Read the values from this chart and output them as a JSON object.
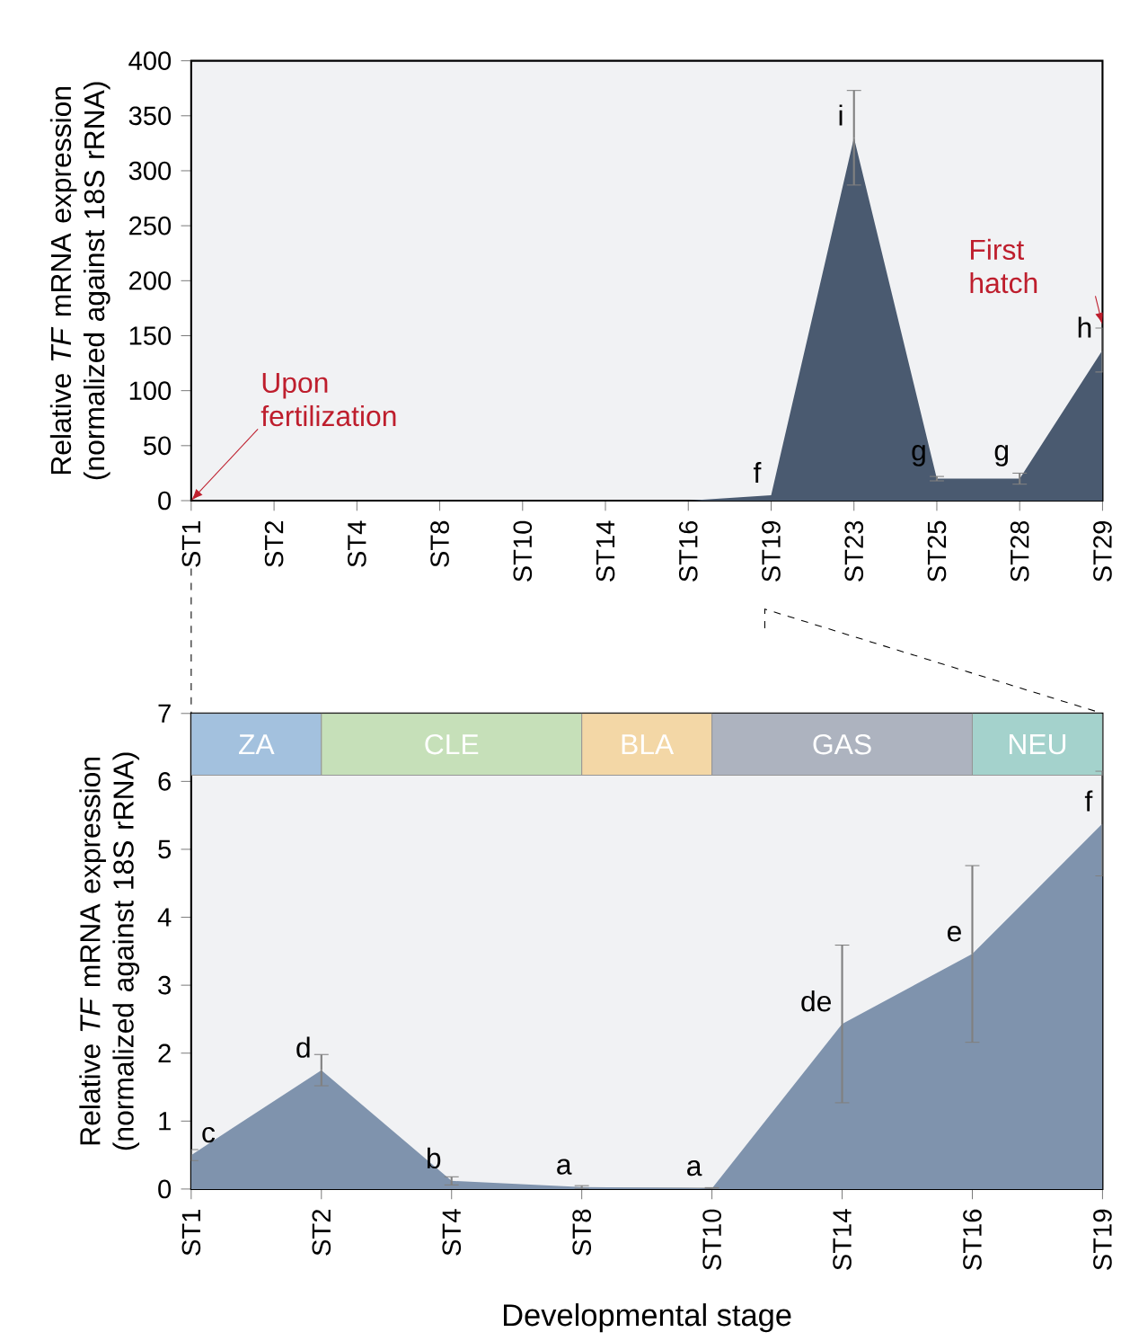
{
  "chart_data": [
    {
      "type": "area",
      "ylabel": "Relative *TF* mRNA expression (normalized against 18S rRNA)",
      "categories": [
        "ST1",
        "ST2",
        "ST4",
        "ST8",
        "ST10",
        "ST14",
        "ST16",
        "ST19",
        "ST23",
        "ST25",
        "ST28",
        "ST29"
      ],
      "series": [
        {
          "color": "#4a5a70",
          "values": [
            0,
            0,
            0,
            0,
            0,
            0,
            0,
            5,
            330,
            20,
            20,
            137
          ],
          "errors": [
            null,
            null,
            null,
            null,
            null,
            null,
            null,
            null,
            43,
            2,
            5,
            20
          ]
        }
      ],
      "ylim": [
        0,
        400
      ],
      "yticks": [
        0,
        50,
        100,
        150,
        200,
        250,
        300,
        350,
        400
      ],
      "annotations": [
        {
          "text": "f",
          "x": "ST19",
          "y": 5
        },
        {
          "text": "i",
          "x": "ST23",
          "y": 330
        },
        {
          "text": "g",
          "x": "ST25",
          "y": 20
        },
        {
          "text": "g",
          "x": "ST28",
          "y": 20
        },
        {
          "text": "h",
          "x": "ST29",
          "y": 137
        },
        {
          "text": "Upon fertilization",
          "x": "ST1",
          "y": 0
        },
        {
          "text": "First hatch",
          "x": "ST29",
          "y": 160
        }
      ]
    },
    {
      "type": "area",
      "xlabel": "Developmental stage",
      "ylabel": "Relative *TF* mRNA expression (normalized against 18S rRNA)",
      "categories": [
        "ST1",
        "ST2",
        "ST4",
        "ST8",
        "ST10",
        "ST14",
        "ST16",
        "ST19"
      ],
      "series": [
        {
          "color": "#7f93ad",
          "values": [
            0.5,
            1.75,
            0.12,
            0.03,
            0.01,
            2.43,
            3.46,
            5.38
          ],
          "errors": [
            0.08,
            0.23,
            0.06,
            0.02,
            0.01,
            1.16,
            1.3,
            0.77
          ]
        }
      ],
      "ylim": [
        0,
        7
      ],
      "yticks": [
        0,
        1,
        2,
        3,
        4,
        5,
        6,
        7
      ],
      "bands": [
        {
          "axis": "x",
          "from": "ST1",
          "to": "ST2",
          "label": "ZA",
          "color": "#a3c1de"
        },
        {
          "axis": "x",
          "from": "ST2",
          "to": "ST8",
          "label": "CLE",
          "color": "#c6e0b9"
        },
        {
          "axis": "x",
          "from": "ST8",
          "to": "ST10",
          "label": "BLA",
          "color": "#f3d7a6"
        },
        {
          "axis": "x",
          "from": "ST10",
          "to": "ST16",
          "label": "GAS",
          "color": "#adb3bf"
        },
        {
          "axis": "x",
          "from": "ST16",
          "to": "ST19",
          "label": "NEU",
          "color": "#a4d2cc"
        }
      ],
      "annotations": [
        {
          "text": "c",
          "x": "ST1",
          "y": 0.5
        },
        {
          "text": "d",
          "x": "ST2",
          "y": 1.75
        },
        {
          "text": "b",
          "x": "ST4",
          "y": 0.12
        },
        {
          "text": "a",
          "x": "ST8",
          "y": 0.03
        },
        {
          "text": "a",
          "x": "ST10",
          "y": 0.01
        },
        {
          "text": "de",
          "x": "ST14",
          "y": 2.43
        },
        {
          "text": "e",
          "x": "ST16",
          "y": 3.46
        },
        {
          "text": "f",
          "x": "ST19",
          "y": 5.38
        }
      ]
    }
  ]
}
